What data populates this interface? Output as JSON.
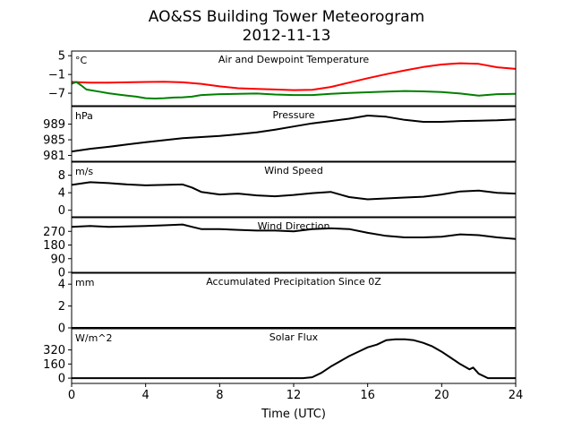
{
  "figure": {
    "title_line1": "AO&SS Building Tower Meteorogram",
    "title_line2": "2012-11-13",
    "xlabel": "Time (UTC)"
  },
  "chart_data": {
    "type": "line",
    "title": "AO&SS Building Tower Meteorogram 2012-11-13",
    "xlabel": "Time (UTC)",
    "xlim": [
      0,
      24
    ],
    "xticks": [
      0,
      4,
      8,
      12,
      16,
      20,
      24
    ],
    "panels": [
      {
        "id": "temp",
        "title": "Air and Dewpoint Temperature",
        "unit": "°C",
        "ylim": [
          -11,
          6.5
        ],
        "yticks": [
          5,
          -1,
          -7
        ],
        "ytick_labels": [
          "5",
          "−1",
          "−7"
        ],
        "series": [
          {
            "color": "#ff0000",
            "x": [
              0,
              1,
              2,
              3,
              4,
              5,
              6,
              7,
              8,
              9,
              10,
              11,
              12,
              13,
              14,
              15,
              16,
              17,
              18,
              19,
              20,
              21,
              22,
              23,
              24
            ],
            "y": [
              -3.4,
              -3.6,
              -3.6,
              -3.5,
              -3.4,
              -3.3,
              -3.5,
              -4,
              -4.8,
              -5.4,
              -5.6,
              -5.8,
              -6,
              -5.9,
              -5,
              -3.6,
              -2.2,
              -0.9,
              0.3,
              1.4,
              2.2,
              2.6,
              2.4,
              1.3,
              0.8
            ]
          },
          {
            "color": "#008000",
            "x": [
              0,
              0.25,
              0.5,
              0.8,
              1,
              1.5,
              2,
              2.5,
              3,
              3.5,
              4,
              4.5,
              5,
              5.5,
              6,
              6.5,
              7,
              8,
              9,
              10,
              11,
              12,
              13,
              14,
              15,
              16,
              17,
              18,
              19,
              20,
              21,
              22,
              23,
              24
            ],
            "y": [
              -4,
              -3.4,
              -4.4,
              -5.8,
              -6,
              -6.5,
              -7,
              -7.4,
              -7.8,
              -8.1,
              -8.6,
              -8.7,
              -8.6,
              -8.4,
              -8.3,
              -8.1,
              -7.6,
              -7.3,
              -7.2,
              -7.1,
              -7.4,
              -7.6,
              -7.6,
              -7.2,
              -6.9,
              -6.7,
              -6.5,
              -6.3,
              -6.4,
              -6.6,
              -7.1,
              -7.8,
              -7.3,
              -7.2
            ]
          }
        ]
      },
      {
        "id": "pressure",
        "title": "Pressure",
        "unit": "hPa",
        "ylim": [
          979.5,
          993.5
        ],
        "yticks": [
          989,
          985,
          981
        ],
        "series": [
          {
            "color": "#000000",
            "x": [
              0,
              1,
              2,
              3,
              4,
              5,
              6,
              7,
              8,
              9,
              10,
              11,
              12,
              13,
              14,
              15,
              16,
              17,
              18,
              19,
              20,
              21,
              22,
              23,
              24
            ],
            "y": [
              982,
              982.7,
              983.2,
              983.8,
              984.4,
              984.9,
              985.4,
              985.7,
              986,
              986.4,
              986.9,
              987.6,
              988.4,
              989.2,
              989.8,
              990.4,
              991.2,
              990.9,
              990.1,
              989.6,
              989.6,
              989.8,
              989.9,
              990,
              990.2
            ]
          }
        ]
      },
      {
        "id": "wind_speed",
        "title": "Wind Speed",
        "unit": "m/s",
        "ylim": [
          -1.5,
          11
        ],
        "yticks": [
          8,
          4,
          0
        ],
        "series": [
          {
            "color": "#000000",
            "x": [
              0,
              1,
              2,
              3,
              4,
              5,
              6,
              6.5,
              7,
              8,
              9,
              10,
              11,
              12,
              13,
              14,
              15,
              16,
              17,
              18,
              19,
              20,
              21,
              22,
              23,
              24
            ],
            "y": [
              5.8,
              6.4,
              6.2,
              5.9,
              5.7,
              5.8,
              5.9,
              5.2,
              4.2,
              3.6,
              3.8,
              3.4,
              3.2,
              3.5,
              3.9,
              4.2,
              3,
              2.5,
              2.7,
              2.9,
              3.1,
              3.6,
              4.3,
              4.5,
              4,
              3.8
            ]
          }
        ]
      },
      {
        "id": "wind_direction",
        "title": "Wind Direction",
        "unit": "",
        "ylim": [
          0,
          360
        ],
        "yticks": [
          270,
          180,
          90,
          0
        ],
        "series": [
          {
            "color": "#000000",
            "x": [
              0,
              1,
              2,
              3,
              4,
              5,
              6,
              6.5,
              7,
              8,
              9,
              10,
              11,
              12,
              13,
              14,
              15,
              16,
              17,
              18,
              19,
              20,
              21,
              22,
              23,
              24
            ],
            "y": [
              300,
              305,
              300,
              302,
              305,
              310,
              315,
              300,
              285,
              285,
              280,
              275,
              275,
              270,
              285,
              290,
              285,
              260,
              240,
              230,
              230,
              235,
              250,
              245,
              230,
              220
            ]
          }
        ]
      },
      {
        "id": "precip",
        "title": "Accumulated Precipitation Since 0Z",
        "unit": "mm",
        "ylim": [
          0,
          5
        ],
        "yticks": [
          4,
          2,
          0
        ],
        "series": [
          {
            "color": "#000000",
            "x": [
              0,
              24
            ],
            "y": [
              0,
              0
            ]
          }
        ]
      },
      {
        "id": "solar",
        "title": "Solar Flux",
        "unit": "W/m^2",
        "ylim": [
          -60,
          560
        ],
        "yticks": [
          320,
          160,
          0
        ],
        "series": [
          {
            "color": "#000000",
            "x": [
              0,
              12.5,
              13,
              13.5,
              14,
              14.5,
              15,
              15.5,
              16,
              16.5,
              17,
              17.5,
              18,
              18.5,
              19,
              19.5,
              20,
              20.5,
              21,
              21.5,
              21.7,
              22,
              22.5,
              24
            ],
            "y": [
              0,
              0,
              10,
              60,
              130,
              190,
              250,
              300,
              350,
              380,
              430,
              440,
              440,
              430,
              400,
              360,
              300,
              230,
              160,
              100,
              120,
              50,
              0,
              0
            ]
          }
        ]
      }
    ]
  }
}
